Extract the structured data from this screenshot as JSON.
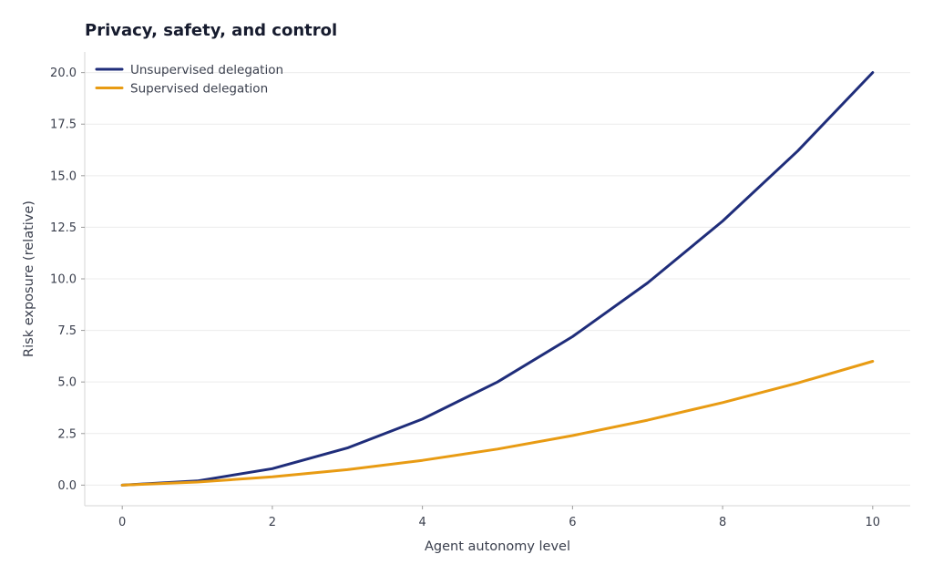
{
  "chart_data": {
    "type": "line",
    "title": "Privacy, safety, and control",
    "xlabel": "Agent autonomy level",
    "ylabel": "Risk exposure (relative)",
    "x": [
      0,
      1,
      2,
      3,
      4,
      5,
      6,
      7,
      8,
      9,
      10
    ],
    "xlim": [
      -0.5,
      10.5
    ],
    "ylim": [
      -1,
      21
    ],
    "xticks": [
      0,
      2,
      4,
      6,
      8,
      10
    ],
    "yticks": [
      0,
      2.5,
      5,
      7.5,
      10,
      12.5,
      15,
      17.5,
      20
    ],
    "xtick_labels": [
      "0",
      "2",
      "4",
      "6",
      "8",
      "10"
    ],
    "ytick_labels": [
      "0.0",
      "2.5",
      "5.0",
      "7.5",
      "10.0",
      "12.5",
      "15.0",
      "17.5",
      "20.0"
    ],
    "grid": "horizontal",
    "legend_position": "top-left",
    "series": [
      {
        "name": "Unsupervised delegation",
        "color": "#1f2d7a",
        "values": [
          0,
          0.2,
          0.8,
          1.8,
          3.2,
          5.0,
          7.2,
          9.8,
          12.8,
          16.2,
          20.0
        ]
      },
      {
        "name": "Supervised delegation",
        "color": "#e89b13",
        "values": [
          0,
          0.15,
          0.4,
          0.75,
          1.2,
          1.75,
          2.4,
          3.15,
          4.0,
          4.95,
          6.0
        ]
      }
    ]
  }
}
